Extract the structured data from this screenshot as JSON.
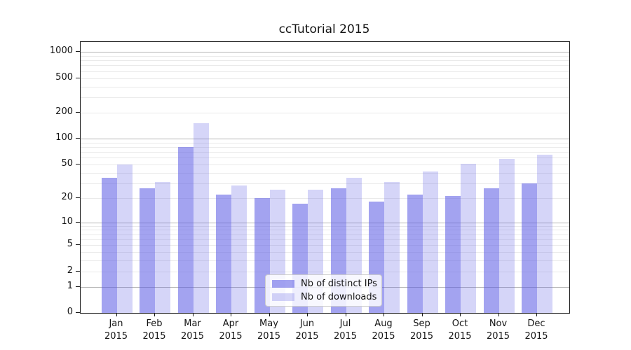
{
  "chart_data": {
    "type": "bar",
    "title": "ccTutorial 2015",
    "categories": [
      "Jan 2015",
      "Feb 2015",
      "Mar 2015",
      "Apr 2015",
      "May 2015",
      "Jun 2015",
      "Jul 2015",
      "Aug 2015",
      "Sep 2015",
      "Oct 2015",
      "Nov 2015",
      "Dec 2015"
    ],
    "series": [
      {
        "name": "Nb of distinct IPs",
        "values": [
          35,
          26,
          80,
          22,
          20,
          17,
          26,
          18,
          22,
          21,
          26,
          30
        ],
        "color": "rgba(88,88,228,0.55)"
      },
      {
        "name": "Nb of downloads",
        "values": [
          50,
          31,
          150,
          28,
          25,
          25,
          35,
          31,
          41,
          51,
          58,
          65
        ],
        "color": "rgba(88,88,228,0.25)"
      }
    ],
    "xlabel": "",
    "ylabel": "",
    "yscale": "log1p",
    "ylim": [
      0,
      1300
    ],
    "y_ticks": [
      0,
      1,
      2,
      5,
      10,
      20,
      50,
      100,
      200,
      500,
      1000
    ],
    "y_major_gridlines": [
      1,
      10,
      100,
      1000
    ],
    "y_minor_gridlines": [
      2,
      3,
      4,
      5,
      6,
      7,
      8,
      9,
      20,
      30,
      40,
      50,
      60,
      70,
      80,
      90,
      200,
      300,
      400,
      500,
      600,
      700,
      800,
      900
    ],
    "grid": true,
    "legend_position": "lower center",
    "colors": {
      "grid_major": "#b5b5b5",
      "grid_minor": "#eaeaea",
      "axis": "#1a1a1a",
      "text": "#141414"
    }
  }
}
